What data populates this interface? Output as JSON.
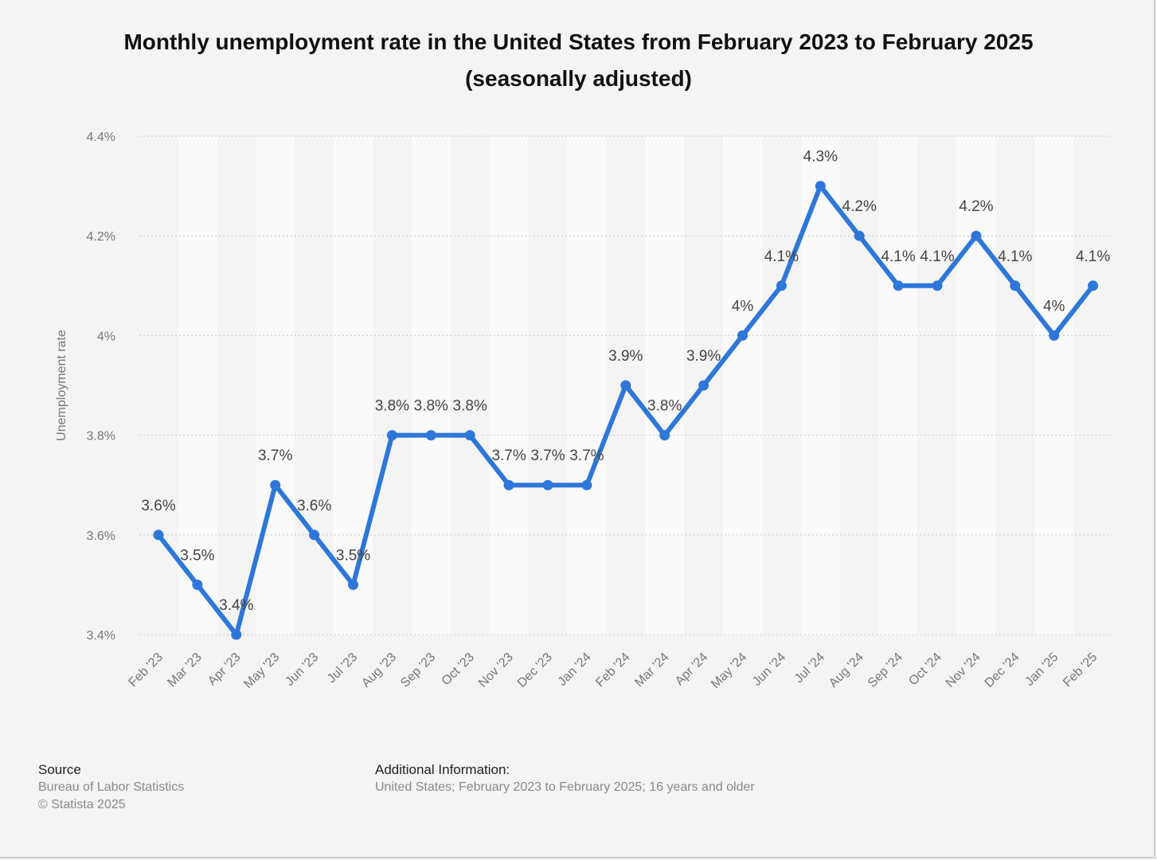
{
  "title_line1": "Monthly unemployment rate in the United States from February 2023 to February 2025",
  "title_line2": "(seasonally adjusted)",
  "footer": {
    "source_heading": "Source",
    "source_name": "Bureau of Labor Statistics",
    "copyright": "© Statista 2025",
    "additional_heading": "Additional Information:",
    "additional_text": "United States; February 2023 to February 2025; 16 years and older"
  },
  "colors": {
    "line": "#2e77d9",
    "grid": "#c8c8c8",
    "band": "#fafafa",
    "background": "#f4f4f4",
    "axis_text": "#777777",
    "label_text": "#444444"
  },
  "chart_data": {
    "type": "line",
    "title": "Monthly unemployment rate in the United States from February 2023 to February 2025 (seasonally adjusted)",
    "ylabel": "Unemployment rate",
    "xlabel": "",
    "ylim": [
      3.4,
      4.4
    ],
    "yticks": [
      3.4,
      3.6,
      3.8,
      4.0,
      4.2,
      4.4
    ],
    "ytick_labels": [
      "3.4%",
      "3.6%",
      "3.8%",
      "4%",
      "4.2%",
      "4.4%"
    ],
    "grid": true,
    "grid_style": "dotted",
    "legend": "none",
    "categories": [
      "Feb '23",
      "Mar '23",
      "Apr '23",
      "May '23",
      "Jun '23",
      "Jul '23",
      "Aug '23",
      "Sep '23",
      "Oct '23",
      "Nov '23",
      "Dec '23",
      "Jan '24",
      "Feb '24",
      "Mar '24",
      "Apr '24",
      "May '24",
      "Jun '24",
      "Jul '24",
      "Aug '24",
      "Sep '24",
      "Oct '24",
      "Nov '24",
      "Dec '24",
      "Jan '25",
      "Feb '25"
    ],
    "series": [
      {
        "values": [
          3.6,
          3.5,
          3.4,
          3.7,
          3.6,
          3.5,
          3.8,
          3.8,
          3.8,
          3.7,
          3.7,
          3.7,
          3.9,
          3.8,
          3.9,
          4.0,
          4.1,
          4.3,
          4.2,
          4.1,
          4.1,
          4.2,
          4.1,
          4.0,
          4.1
        ],
        "labels": [
          "3.6%",
          "3.5%",
          "3.4%",
          "3.7%",
          "3.6%",
          "3.5%",
          "3.8%",
          "3.8%",
          "3.8%",
          "3.7%",
          "3.7%",
          "3.7%",
          "3.9%",
          "3.8%",
          "3.9%",
          "4%",
          "4.1%",
          "4.3%",
          "4.2%",
          "4.1%",
          "4.1%",
          "4.2%",
          "4.1%",
          "4%",
          "4.1%"
        ]
      }
    ]
  }
}
